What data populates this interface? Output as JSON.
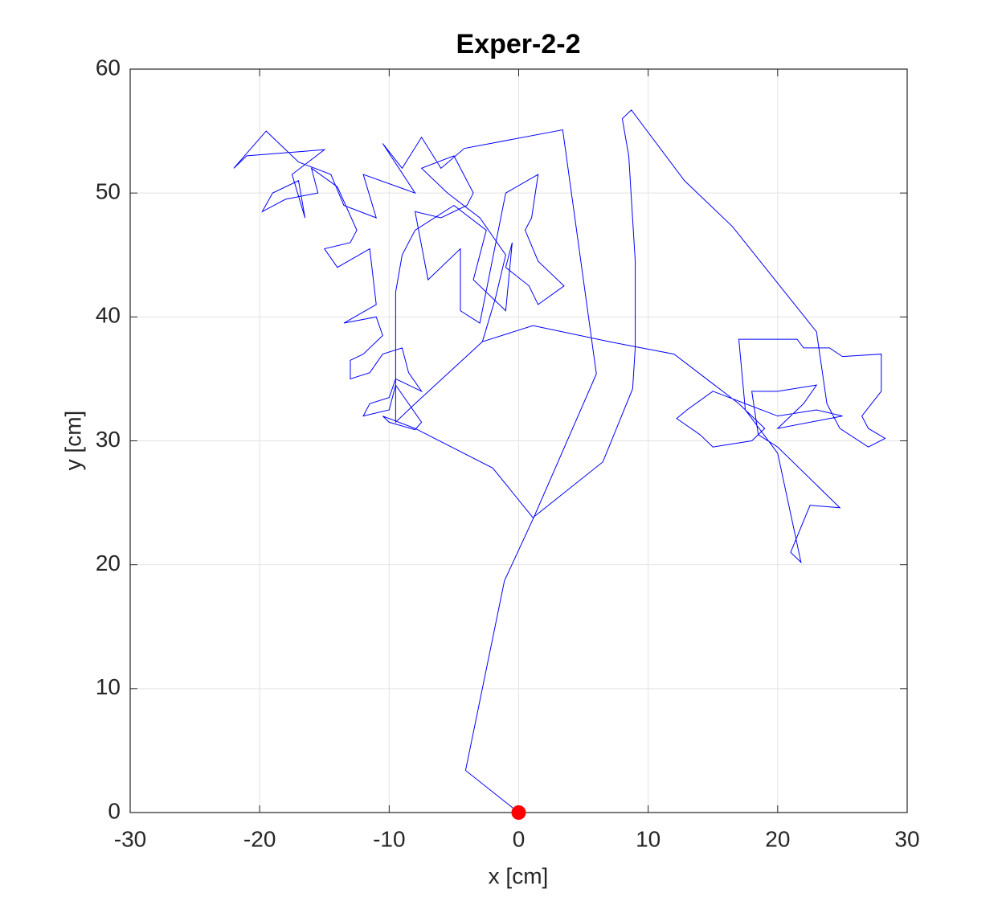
{
  "chart_data": {
    "type": "line",
    "title": "Exper-2-2",
    "x_label": "x [cm]",
    "y_label": "y [cm]",
    "xlim": [
      -30,
      30
    ],
    "ylim": [
      0,
      60
    ],
    "xticks": [
      -30,
      -20,
      -10,
      0,
      10,
      20,
      30
    ],
    "yticks": [
      0,
      10,
      20,
      30,
      40,
      50,
      60
    ],
    "grid": true,
    "series": [
      {
        "color": "#0000ff",
        "style": "line",
        "x": [
          0,
          -4.1,
          -1.1,
          1.2,
          6.0,
          3.4,
          -4.2,
          -6.0,
          -7.5,
          -9.0,
          -10.5,
          -8.0,
          -12.0,
          -11.0,
          -13.5,
          -14.5,
          -17.0,
          -19.5,
          -22.0,
          -21.0,
          -15.0,
          -17.5,
          -16.5,
          -17.0,
          -19.0,
          -19.8,
          -18.0,
          -15.5,
          -16.0,
          -14.0,
          -12.5,
          -13.0,
          -15.0,
          -14.0,
          -11.5,
          -11.0,
          -13.5,
          -11.0,
          -10.5,
          -12.0,
          -13.0,
          -13.0,
          -11.5,
          -10.5,
          -9.0,
          -8.5,
          -7.5,
          -9.5,
          -10.0,
          -11.5,
          -12.0,
          -10.0,
          -9.5,
          -8.5,
          -7.5,
          -8.0,
          -10.0,
          -10.5,
          -8.0,
          -2.0,
          1.1,
          6.5,
          8.8,
          9.0,
          9.0,
          8.5,
          8.0,
          8.7,
          12.8,
          16.5,
          23.0,
          23.8,
          24.8,
          27.0,
          28.3,
          27.0,
          26.5,
          28.0,
          28.0,
          25.0,
          24.0,
          22.0,
          21.5,
          17.0,
          17.5,
          20.0,
          21.8,
          21.0,
          22.5,
          24.8,
          20.0,
          18.5,
          18.0,
          20.0,
          23.0,
          22.0,
          20.0,
          25.0,
          23.0,
          20.0,
          15.0,
          13.0,
          12.2,
          14.0,
          15.0,
          18.0,
          19.0,
          17.0,
          12.0,
          9.0,
          7.0,
          1.1,
          -2.8,
          -1.8,
          -1.0,
          -3.0,
          -5.5,
          -7.5,
          -5.0,
          -3.5,
          -4.0,
          -6.0,
          -8.0,
          -7.0,
          -4.5,
          -4.5,
          -3.0,
          -1.0,
          1.5,
          1.0,
          0.5,
          1.5,
          3.5,
          1.5,
          0.8,
          -1.0,
          -0.5,
          -1.0,
          -3.5,
          -2.5,
          -5.0,
          -8.0,
          -9.0,
          -9.5,
          -9.5,
          -9.5,
          -8.0,
          -2.8
        ],
        "y": [
          0,
          3.4,
          18.7,
          23.9,
          35.4,
          55.1,
          53.6,
          52.0,
          54.5,
          52.0,
          54.0,
          50.0,
          51.5,
          48.0,
          49.0,
          51.5,
          52.5,
          55.0,
          52.0,
          53.0,
          53.5,
          51.5,
          48.0,
          51.0,
          50.0,
          48.5,
          49.5,
          50.0,
          52.0,
          50.5,
          47.0,
          46.0,
          45.5,
          44.0,
          45.5,
          41.0,
          39.5,
          40.0,
          38.5,
          37.0,
          36.5,
          35.0,
          35.5,
          37.0,
          37.5,
          35.5,
          34.0,
          35.0,
          33.5,
          33.0,
          32.0,
          32.5,
          34.5,
          33.0,
          31.5,
          30.9,
          31.5,
          32.0,
          31.0,
          27.8,
          23.8,
          28.3,
          34.2,
          37.5,
          44.5,
          53.0,
          56.0,
          56.7,
          51.0,
          47.3,
          38.8,
          33.0,
          31.0,
          29.5,
          30.2,
          31.0,
          32.0,
          34.0,
          37.0,
          36.8,
          37.5,
          37.5,
          38.2,
          38.2,
          32.5,
          29.0,
          20.2,
          21.0,
          24.8,
          24.6,
          29.5,
          30.5,
          34.0,
          34.0,
          34.5,
          33.0,
          31.0,
          32.0,
          32.5,
          32.0,
          34.0,
          32.5,
          31.8,
          30.5,
          29.5,
          30.0,
          31.0,
          33.0,
          37.0,
          37.6,
          38.0,
          39.3,
          38.0,
          41.5,
          45.0,
          48.0,
          50.0,
          52.0,
          53.0,
          50.0,
          49.0,
          48.0,
          48.5,
          43.0,
          45.5,
          40.5,
          39.5,
          50.0,
          51.5,
          48.0,
          47.0,
          44.5,
          42.5,
          41.0,
          42.5,
          44.0,
          46.0,
          40.5,
          43.0,
          47.0,
          49.0,
          47.0,
          45.0,
          42.0,
          36.0,
          31.5,
          33.0,
          38.0
        ]
      },
      {
        "color": "#ff0000",
        "style": "marker",
        "x": [
          0
        ],
        "y": [
          0
        ]
      }
    ]
  }
}
